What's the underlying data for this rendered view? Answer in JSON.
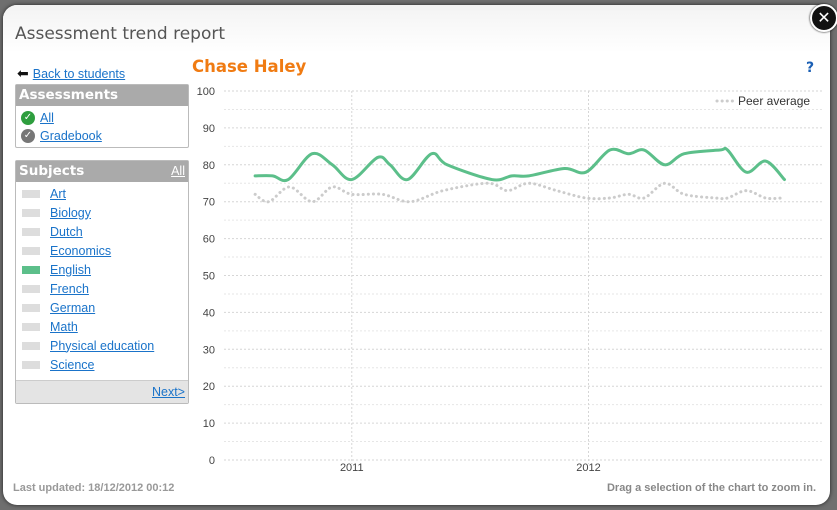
{
  "window": {
    "title": "Assessment trend report",
    "close_icon": "close-icon"
  },
  "nav": {
    "back_label": "Back to students"
  },
  "assessments": {
    "header": "Assessments",
    "items": [
      {
        "label": "All",
        "checked": true,
        "color": "#2e9e3e"
      },
      {
        "label": "Gradebook",
        "checked": true,
        "color": "#777777"
      }
    ]
  },
  "subjects": {
    "header": "Subjects",
    "all_label": "All",
    "next_label": "Next>",
    "items": [
      {
        "label": "Art",
        "color": "#dddddd"
      },
      {
        "label": "Biology",
        "color": "#dddddd"
      },
      {
        "label": "Dutch",
        "color": "#dddddd"
      },
      {
        "label": "Economics",
        "color": "#dddddd"
      },
      {
        "label": "English",
        "color": "#5cbf8a"
      },
      {
        "label": "French",
        "color": "#dddddd"
      },
      {
        "label": "German",
        "color": "#dddddd"
      },
      {
        "label": "Math",
        "color": "#dddddd"
      },
      {
        "label": "Physical education",
        "color": "#dddddd"
      },
      {
        "label": "Science",
        "color": "#dddddd"
      }
    ]
  },
  "student_name": "Chase Haley",
  "help_label": "?",
  "footer": {
    "last_updated": "Last updated: 18/12/2012 00:12",
    "hint": "Drag a selection of the chart to zoom in."
  },
  "chart_data": {
    "type": "line",
    "ylim": [
      0,
      100
    ],
    "yticks": [
      0,
      10,
      20,
      30,
      40,
      50,
      60,
      70,
      80,
      90,
      100
    ],
    "xlim": [
      "2010-06-18",
      "2012-12-27"
    ],
    "xticks": [
      "2011",
      "2012"
    ],
    "grid": true,
    "legend_position": "top-right",
    "series": [
      {
        "color": "#5cbf8a",
        "style": "solid",
        "x": [
          "2010-08-05",
          "2010-09-01",
          "2010-09-25",
          "2010-11-01",
          "2010-12-02",
          "2011-01-01",
          "2011-02-10",
          "2011-03-01",
          "2011-03-28",
          "2011-05-04",
          "2011-05-28",
          "2011-08-05",
          "2011-09-05",
          "2011-10-01",
          "2011-11-25",
          "2011-12-28",
          "2012-02-03",
          "2012-03-03",
          "2012-03-27",
          "2012-04-28",
          "2012-05-28",
          "2012-07-22",
          "2012-08-03",
          "2012-09-01",
          "2012-10-01",
          "2012-10-30"
        ],
        "values": [
          77,
          77,
          76,
          83,
          80,
          76,
          82,
          80,
          76,
          83,
          80,
          76,
          77,
          77,
          79,
          78,
          84,
          83,
          84,
          80,
          83,
          84,
          84,
          78,
          81,
          76
        ]
      },
      {
        "name": "Peer average",
        "color": "#cccccc",
        "style": "dotted",
        "x": [
          "2010-08-05",
          "2010-08-26",
          "2010-09-27",
          "2010-11-01",
          "2010-12-02",
          "2011-01-01",
          "2011-02-17",
          "2011-04-01",
          "2011-05-22",
          "2011-07-30",
          "2011-08-29",
          "2011-10-01",
          "2011-11-13",
          "2011-12-28",
          "2012-02-03",
          "2012-03-03",
          "2012-03-27",
          "2012-04-28",
          "2012-05-28",
          "2012-07-16",
          "2012-08-03",
          "2012-09-01",
          "2012-10-01",
          "2012-10-26"
        ],
        "values": [
          72,
          70,
          74,
          70,
          74,
          72,
          72,
          70,
          73,
          75,
          73,
          75,
          73,
          71,
          71,
          72,
          71,
          75,
          72,
          71,
          71,
          73,
          71,
          71
        ]
      }
    ]
  }
}
